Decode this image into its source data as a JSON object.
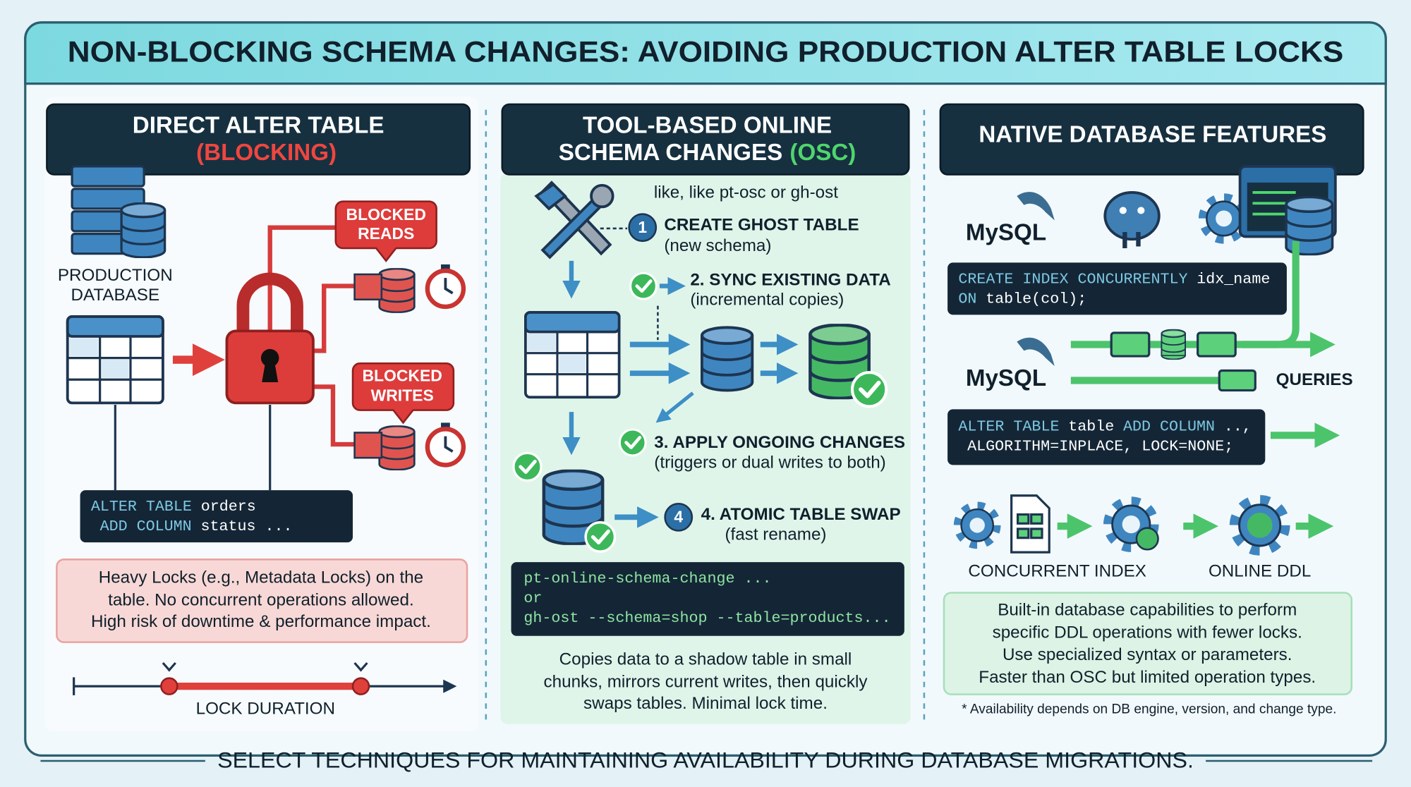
{
  "header": {
    "title": "NON-BLOCKING SCHEMA CHANGES: AVOIDING PRODUCTION ALTER TABLE LOCKS"
  },
  "direct": {
    "heading": [
      "DIRECT ALTER TABLE",
      "(BLOCKING)"
    ],
    "db_label": [
      "PRODUCTION",
      "DATABASE"
    ],
    "blocked_reads": [
      "BLOCKED",
      "READS"
    ],
    "blocked_writes": [
      "BLOCKED",
      "WRITES"
    ],
    "code": [
      [
        "ALTER TABLE",
        "orders"
      ],
      [
        "ADD COLUMN",
        "status ..."
      ]
    ],
    "note": [
      "Heavy Locks (e.g., Metadata Locks) on the",
      "table. No concurrent operations allowed.",
      "High risk of downtime & performance impact."
    ],
    "timeline_label": "LOCK DURATION"
  },
  "osc": {
    "heading": [
      "TOOL-BASED ONLINE",
      "SCHEMA CHANGES",
      "(OSC)"
    ],
    "subtitle": "like, like pt-osc or gh-ost",
    "steps": [
      {
        "number": "1",
        "title": "CREATE GHOST TABLE",
        "detail": "(new schema)"
      },
      {
        "title": "2. SYNC EXISTING DATA",
        "detail": "(incremental copies)"
      },
      {
        "title": "3. APPLY ONGOING CHANGES",
        "detail": "(triggers or dual writes to both)"
      },
      {
        "number": "4",
        "title": "4. ATOMIC TABLE SWAP",
        "detail": "(fast rename)"
      }
    ],
    "code": [
      "pt-online-schema-change ...",
      "or",
      "gh-ost --schema=shop --table=products..."
    ],
    "note": [
      "Copies data to a shadow table in small",
      "chunks, mirrors current writes, then quickly",
      "swaps tables. Minimal lock time."
    ]
  },
  "native": {
    "heading": "NATIVE DATABASE FEATURES",
    "logos": [
      "MySQL",
      "MySQL"
    ],
    "code_index": [
      [
        "CREATE INDEX CONCURRENTLY",
        "idx_name"
      ],
      [
        "ON",
        "table(col);"
      ]
    ],
    "queries": "QUERIES",
    "code_ddl": [
      [
        "ALTER TABLE",
        "table",
        "ADD COLUMN",
        "..,"
      ],
      [
        "ALGORITHM=INPLACE, LOCK=NONE;"
      ]
    ],
    "labels": [
      "CONCURRENT INDEX",
      "ONLINE DDL"
    ],
    "note": [
      "Built-in database capabilities to perform",
      "specific DDL operations with fewer locks.",
      "Use specialized syntax or parameters.",
      "Faster than OSC but limited operation types."
    ],
    "footnote": "* Availability depends on DB engine, version, and change type."
  },
  "footer": "SELECT TECHNIQUES FOR MAINTAINING AVAILABILITY DURING DATABASE MIGRATIONS."
}
